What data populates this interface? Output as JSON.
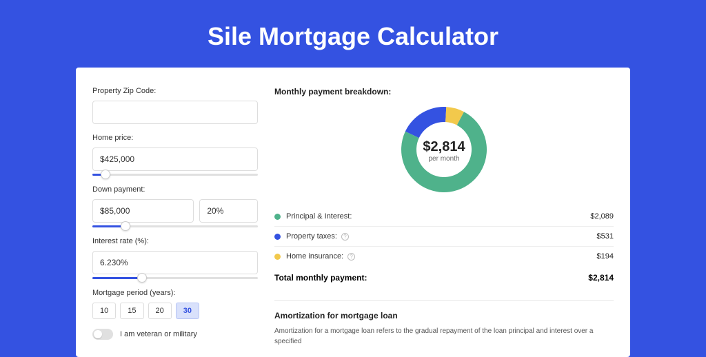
{
  "page": {
    "title": "Sile Mortgage Calculator",
    "background_color": "#3452e1",
    "card_background": "#ffffff"
  },
  "form": {
    "zip": {
      "label": "Property Zip Code:",
      "value": ""
    },
    "home_price": {
      "label": "Home price:",
      "value": "$425,000",
      "slider_fill_pct": 8
    },
    "down_payment": {
      "label": "Down payment:",
      "value": "$85,000",
      "pct_value": "20%",
      "slider_fill_pct": 20
    },
    "interest_rate": {
      "label": "Interest rate (%):",
      "value": "6.230%",
      "slider_fill_pct": 30
    },
    "period": {
      "label": "Mortgage period (years):",
      "options": [
        "10",
        "15",
        "20",
        "30"
      ],
      "active_index": 3
    },
    "veteran": {
      "label": "I am veteran or military",
      "on": false
    }
  },
  "breakdown": {
    "title": "Monthly payment breakdown:",
    "donut": {
      "type": "donut",
      "center_amount": "$2,814",
      "center_label": "per month",
      "size": 130,
      "thickness": 22,
      "slices": [
        {
          "label": "Principal & Interest",
          "value": 2089,
          "color": "#4fb28b",
          "pct": 74.2
        },
        {
          "label": "Property taxes",
          "value": 531,
          "color": "#3452e1",
          "pct": 18.9
        },
        {
          "label": "Home insurance",
          "value": 194,
          "color": "#f2c94c",
          "pct": 6.9
        }
      ]
    },
    "legend": [
      {
        "dot": "#4fb28b",
        "label": "Principal & Interest:",
        "help": false,
        "value": "$2,089"
      },
      {
        "dot": "#3452e1",
        "label": "Property taxes:",
        "help": true,
        "value": "$531"
      },
      {
        "dot": "#f2c94c",
        "label": "Home insurance:",
        "help": true,
        "value": "$194"
      }
    ],
    "total": {
      "label": "Total monthly payment:",
      "value": "$2,814"
    }
  },
  "amortization": {
    "title": "Amortization for mortgage loan",
    "text": "Amortization for a mortgage loan refers to the gradual repayment of the loan principal and interest over a specified"
  }
}
